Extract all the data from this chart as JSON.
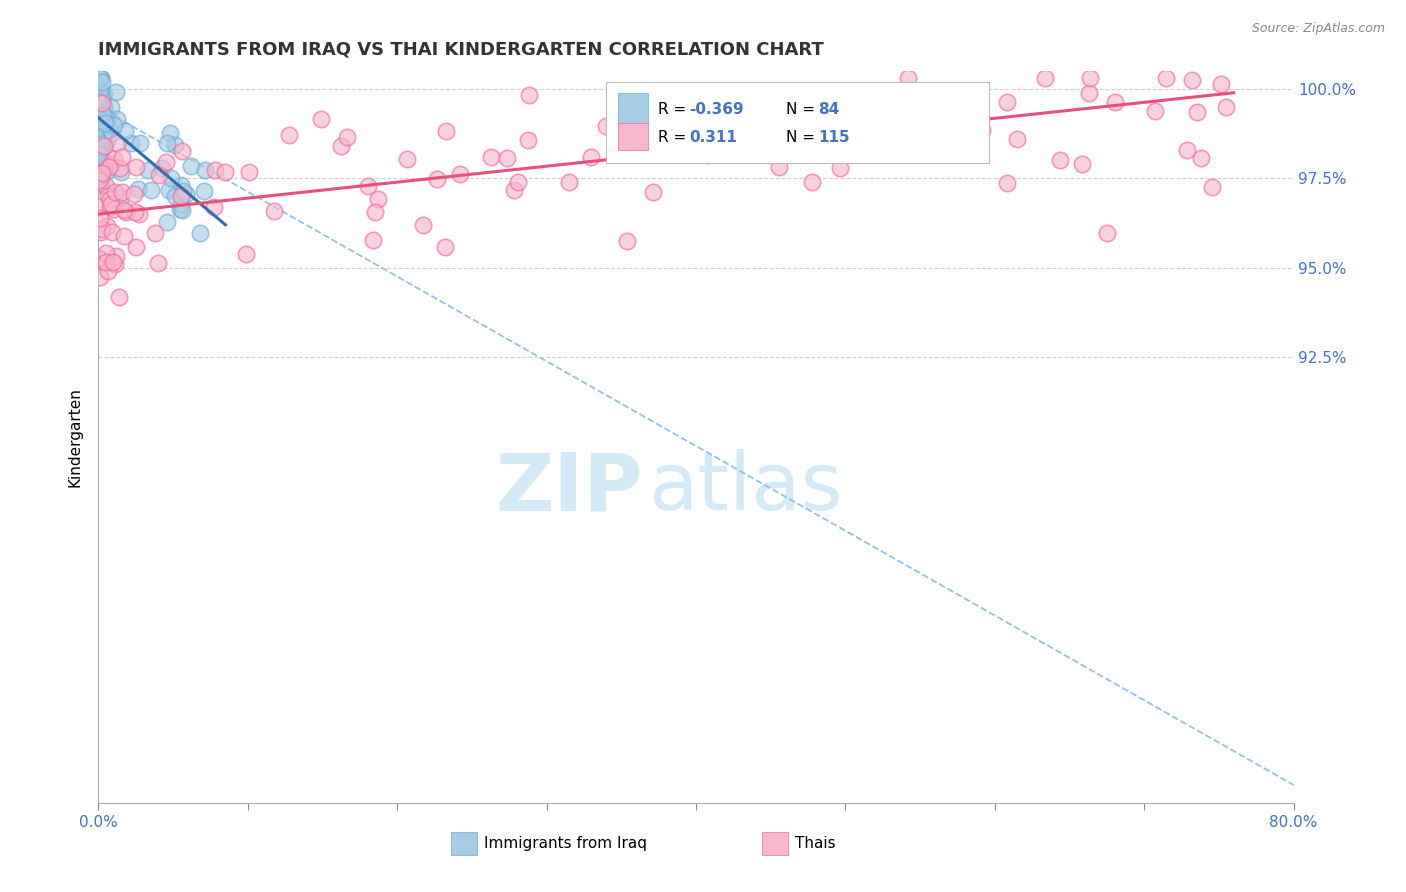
{
  "title": "IMMIGRANTS FROM IRAQ VS THAI KINDERGARTEN CORRELATION CHART",
  "source": "Source: ZipAtlas.com",
  "ylabel": "Kindergarten",
  "xlim": [
    0.0,
    80.0
  ],
  "ylim": [
    80.0,
    100.5
  ],
  "ytick_positions": [
    92.5,
    95.0,
    97.5,
    100.0
  ],
  "ytick_labels": [
    "92.5%",
    "95.0%",
    "97.5%",
    "100.0%"
  ],
  "xtick_positions": [
    0.0,
    10.0,
    20.0,
    30.0,
    40.0,
    50.0,
    60.0,
    70.0,
    80.0
  ],
  "xtick_labels": [
    "0.0%",
    "",
    "",
    "",
    "",
    "",
    "",
    "",
    "80.0%"
  ],
  "iraq_color": "#a8cce4",
  "iraq_edge_color": "#6baed6",
  "thai_color": "#f7b8cc",
  "thai_edge_color": "#f768a1",
  "iraq_R": -0.369,
  "iraq_N": 84,
  "thai_R": 0.311,
  "thai_N": 115,
  "iraq_line_color": "#3070b0",
  "thai_line_color": "#e8507a",
  "dash_line_color": "#90c0e8",
  "tick_color": "#4472c4",
  "watermark_color": "#d0e8f5",
  "legend_box_color": "#e8f4fc",
  "legend_box_edge": "#b0c8e0"
}
